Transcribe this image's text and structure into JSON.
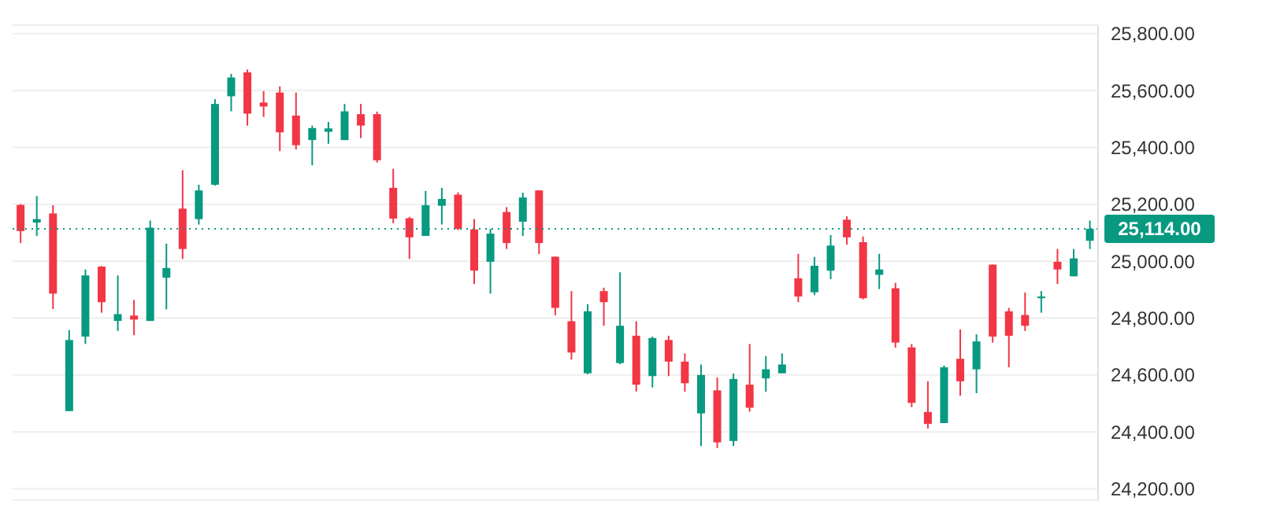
{
  "chart_data": {
    "type": "candlestick",
    "categories": [
      null,
      null,
      null,
      null,
      null,
      null,
      null,
      null,
      null,
      null,
      null,
      null,
      null,
      null,
      null,
      null,
      null,
      null,
      null,
      null,
      null,
      null,
      null,
      null,
      null,
      null,
      null,
      null,
      null,
      null,
      null,
      null,
      null,
      null,
      null,
      null,
      null,
      null,
      null,
      null,
      null,
      null,
      null,
      null,
      null,
      null,
      null,
      null,
      null,
      null,
      null,
      null,
      null,
      null,
      null,
      null,
      null,
      null,
      null,
      null,
      null,
      null,
      null,
      null,
      null,
      null,
      null
    ],
    "ohlc": [
      [
        25198,
        25201,
        25064,
        25106
      ],
      [
        25136,
        25229,
        25089,
        25148
      ],
      [
        25168,
        25197,
        24832,
        24886
      ],
      [
        24473,
        24758,
        24473,
        24723
      ],
      [
        24735,
        24971,
        24709,
        24950
      ],
      [
        24981,
        24983,
        24819,
        24856
      ],
      [
        24790,
        24950,
        24755,
        24814
      ],
      [
        24809,
        24864,
        24740,
        24795
      ],
      [
        24790,
        25143,
        24790,
        25118
      ],
      [
        24942,
        25062,
        24831,
        24976
      ],
      [
        25185,
        25320,
        25008,
        25043
      ],
      [
        25148,
        25269,
        25129,
        25249
      ],
      [
        25269,
        25570,
        25266,
        25553
      ],
      [
        25580,
        25659,
        25527,
        25646
      ],
      [
        25664,
        25674,
        25477,
        25519
      ],
      [
        25558,
        25598,
        25507,
        25544
      ],
      [
        25593,
        25615,
        25387,
        25453
      ],
      [
        25512,
        25593,
        25393,
        25408
      ],
      [
        25426,
        25477,
        25337,
        25468
      ],
      [
        25455,
        25490,
        25413,
        25467
      ],
      [
        25426,
        25553,
        25426,
        25527
      ],
      [
        25517,
        25553,
        25433,
        25477
      ],
      [
        25517,
        25526,
        25347,
        25355
      ],
      [
        25258,
        25325,
        25134,
        25150
      ],
      [
        25151,
        25156,
        25008,
        25084
      ],
      [
        25089,
        25247,
        25089,
        25197
      ],
      [
        25195,
        25258,
        25129,
        25219
      ],
      [
        25234,
        25242,
        25109,
        25114
      ],
      [
        25112,
        25148,
        24920,
        24967
      ],
      [
        24998,
        25114,
        24886,
        25097
      ],
      [
        25173,
        25190,
        25043,
        25064
      ],
      [
        25139,
        25241,
        25089,
        25224
      ],
      [
        25249,
        25249,
        25025,
        25064
      ],
      [
        25016,
        25016,
        24810,
        24836
      ],
      [
        24789,
        24895,
        24654,
        24679
      ],
      [
        24606,
        24849,
        24603,
        24824
      ],
      [
        24895,
        24907,
        24773,
        24856
      ],
      [
        24642,
        24961,
        24638,
        24773
      ],
      [
        24738,
        24789,
        24542,
        24566
      ],
      [
        24596,
        24735,
        24556,
        24730
      ],
      [
        24723,
        24738,
        24596,
        24647
      ],
      [
        24647,
        24676,
        24541,
        24571
      ],
      [
        24465,
        24637,
        24350,
        24600
      ],
      [
        24546,
        24591,
        24343,
        24363
      ],
      [
        24368,
        24605,
        24350,
        24586
      ],
      [
        24566,
        24709,
        24471,
        24485
      ],
      [
        24588,
        24667,
        24541,
        24620
      ],
      [
        24606,
        24676,
        24606,
        24637
      ],
      [
        24940,
        25026,
        24856,
        24876
      ],
      [
        24891,
        25015,
        24881,
        24984
      ],
      [
        24967,
        25092,
        24937,
        25055
      ],
      [
        25146,
        25158,
        25058,
        25084
      ],
      [
        25067,
        25087,
        24866,
        24870
      ],
      [
        24952,
        25026,
        24902,
        24971
      ],
      [
        24905,
        24924,
        24696,
        24714
      ],
      [
        24697,
        24709,
        24487,
        24502
      ],
      [
        24470,
        24578,
        24412,
        24428
      ],
      [
        24431,
        24633,
        24431,
        24627
      ],
      [
        24657,
        24760,
        24527,
        24578
      ],
      [
        24620,
        24743,
        24536,
        24718
      ],
      [
        24988,
        24988,
        24714,
        24735
      ],
      [
        24824,
        24836,
        24627,
        24738
      ],
      [
        24811,
        24890,
        24755,
        24773
      ],
      [
        24870,
        24895,
        24819,
        24876
      ],
      [
        24998,
        25043,
        24920,
        24971
      ],
      [
        24947,
        25043,
        24947,
        25010
      ],
      [
        25072,
        25143,
        25043,
        25114
      ]
    ],
    "colors": [
      "#f23645",
      "#089981",
      "#f23645",
      "#089981",
      "#089981",
      "#f23645",
      "#089981",
      "#f23645",
      "#089981",
      "#089981",
      "#f23645",
      "#089981",
      "#089981",
      "#089981",
      "#f23645",
      "#f23645",
      "#f23645",
      "#f23645",
      "#089981",
      "#089981",
      "#089981",
      "#f23645",
      "#f23645",
      "#f23645",
      "#f23645",
      "#089981",
      "#089981",
      "#f23645",
      "#f23645",
      "#089981",
      "#f23645",
      "#089981",
      "#f23645",
      "#f23645",
      "#f23645",
      "#089981",
      "#f23645",
      "#089981",
      "#f23645",
      "#089981",
      "#f23645",
      "#f23645",
      "#089981",
      "#f23645",
      "#089981",
      "#f23645",
      "#089981",
      "#089981",
      "#f23645",
      "#089981",
      "#089981",
      "#f23645",
      "#f23645",
      "#089981",
      "#f23645",
      "#f23645",
      "#f23645",
      "#089981",
      "#f23645",
      "#089981",
      "#f23645",
      "#f23645",
      "#f23645",
      "#089981",
      "#f23645",
      "#089981",
      "#089981"
    ],
    "ylim": [
      24160,
      25830
    ],
    "yticks": [
      {
        "value": 24200,
        "label": "24,200.00"
      },
      {
        "value": 24400,
        "label": "24,400.00"
      },
      {
        "value": 24600,
        "label": "24,600.00"
      },
      {
        "value": 24800,
        "label": "24,800.00"
      },
      {
        "value": 25000,
        "label": "25,000.00"
      },
      {
        "value": 25200,
        "label": "25,200.00"
      },
      {
        "value": 25400,
        "label": "25,400.00"
      },
      {
        "value": 25600,
        "label": "25,600.00"
      },
      {
        "value": 25800,
        "label": "25,800.00"
      }
    ],
    "ref_lines": [
      {
        "axis": "y",
        "value": 25114,
        "label": "25,114.00",
        "color": "#089981",
        "line_style": "dotted"
      }
    ],
    "grid": "y"
  }
}
